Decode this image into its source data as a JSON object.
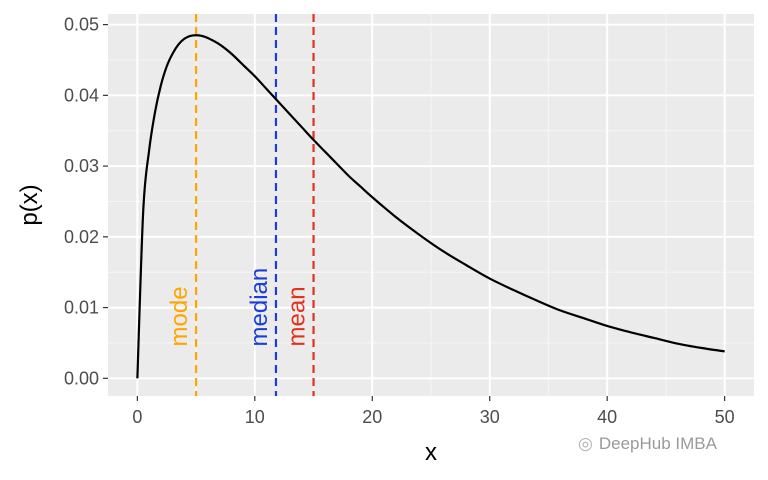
{
  "chart_data": {
    "type": "line",
    "xlabel": "x",
    "ylabel": "p(x)",
    "xlim": [
      0,
      50
    ],
    "ylim": [
      0,
      0.05
    ],
    "xticks": [
      0,
      10,
      20,
      30,
      40,
      50
    ],
    "yticks": [
      "0.00",
      "0.01",
      "0.02",
      "0.03",
      "0.04",
      "0.05"
    ],
    "grid": true,
    "background": "#ebebeb",
    "series": [
      {
        "color": "#000000",
        "x": [
          0,
          0.5,
          1,
          1.5,
          2,
          2.5,
          3,
          3.5,
          4,
          4.5,
          5,
          5.5,
          6,
          7,
          8,
          9,
          10,
          11,
          12,
          13,
          14,
          15,
          16,
          17,
          18,
          19,
          20,
          22,
          24,
          26,
          28,
          30,
          32,
          34,
          36,
          38,
          40,
          42,
          44,
          46,
          48,
          50
        ],
        "y": [
          0,
          0.0237,
          0.0322,
          0.0376,
          0.0414,
          0.0441,
          0.0459,
          0.0472,
          0.048,
          0.0484,
          0.0485,
          0.0484,
          0.0481,
          0.0472,
          0.0459,
          0.0443,
          0.0427,
          0.0409,
          0.0391,
          0.0373,
          0.0355,
          0.0337,
          0.032,
          0.0303,
          0.0286,
          0.0271,
          0.0256,
          0.0228,
          0.0203,
          0.018,
          0.016,
          0.0141,
          0.0125,
          0.011,
          0.0096,
          0.0085,
          0.0074,
          0.0065,
          0.0057,
          0.0049,
          0.0043,
          0.0038
        ]
      }
    ],
    "vlines": [
      {
        "label": "mode",
        "x": 5,
        "color": "#ffa500"
      },
      {
        "label": "median",
        "x": 11.8,
        "color": "#1a3fd9"
      },
      {
        "label": "mean",
        "x": 15,
        "color": "#e3321b"
      }
    ]
  },
  "watermark": {
    "text": "DeepHub IMBA",
    "icon": "wechat-icon"
  }
}
